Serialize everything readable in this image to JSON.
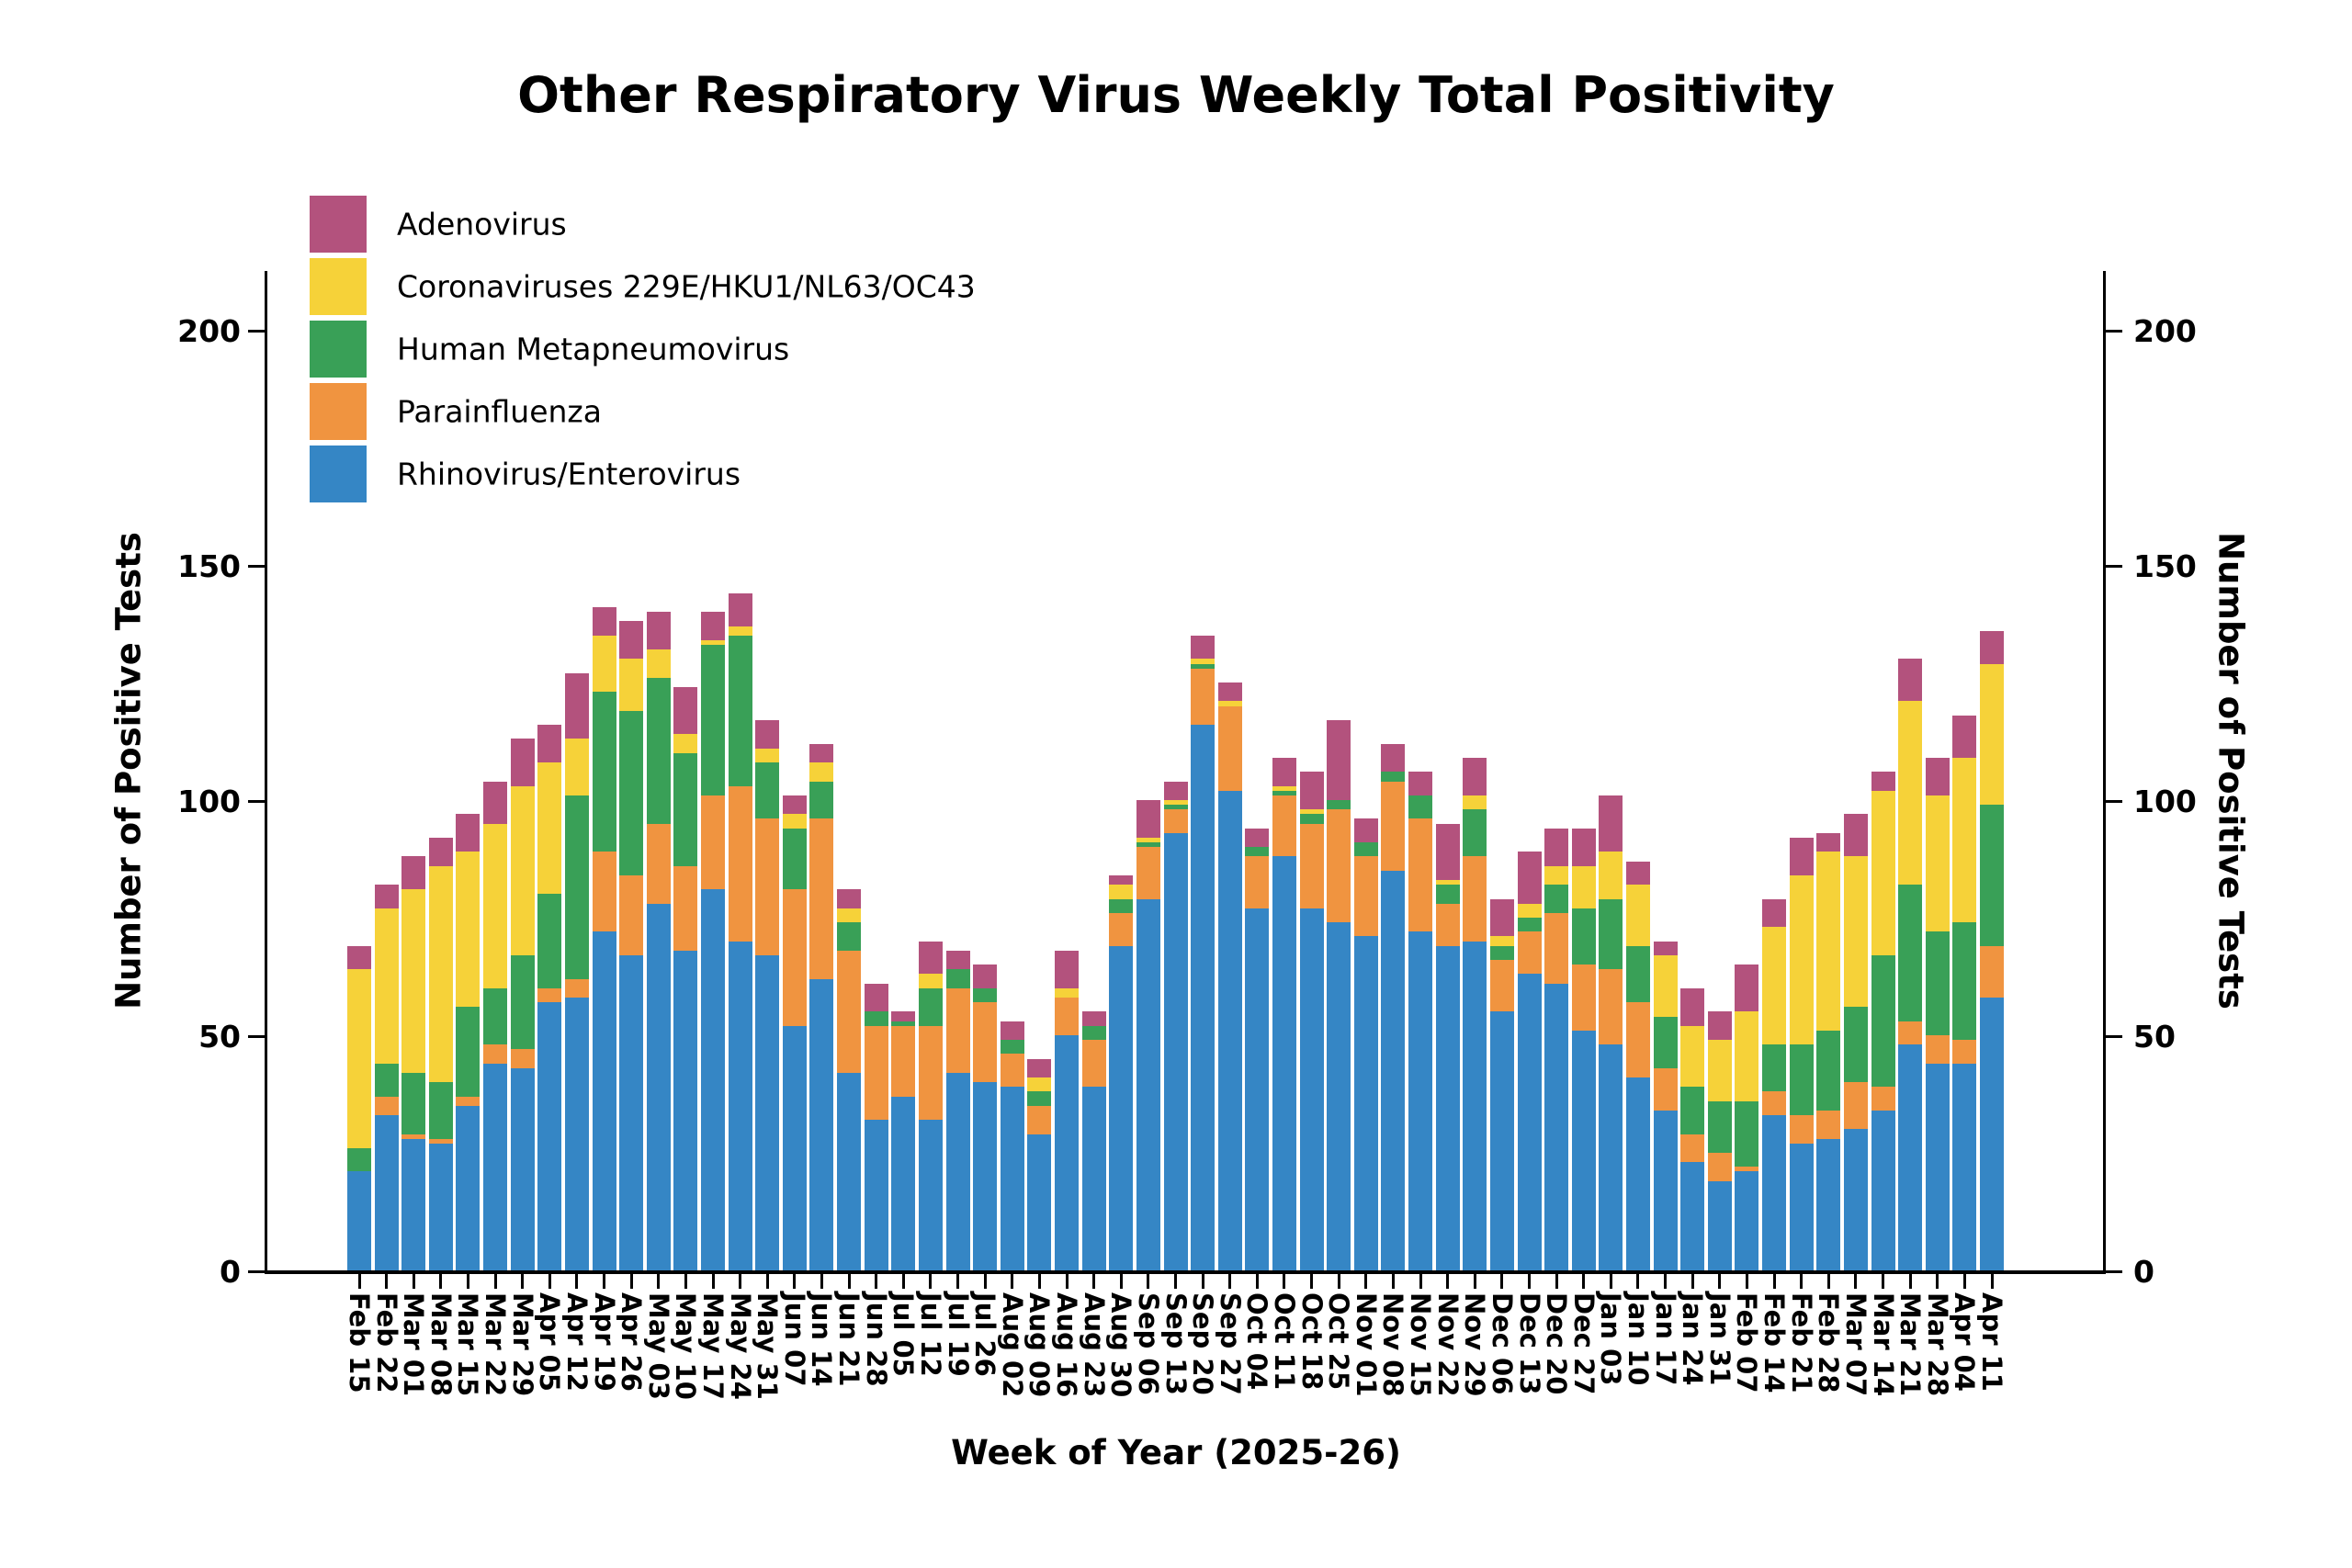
{
  "chart_data": {
    "type": "bar",
    "stacked": true,
    "title": "Other Respiratory Virus Weekly Total Positivity",
    "xlabel": "Week of Year (2025-26)",
    "ylabel_left": "Number of Positive Tests",
    "ylabel_right": "Number of Positive Tests",
    "yticks": [
      0,
      50,
      100,
      150,
      200
    ],
    "ylim": [
      0,
      212
    ],
    "grid": false,
    "legend_position": "top-left-inside",
    "legend_order": [
      "Adenovirus",
      "Coronaviruses 229E/HKU1/NL63/OC43",
      "Human Metapneumovirus",
      "Parainfluenza",
      "Rhinovirus/Enterovirus"
    ],
    "categories": [
      "Feb 15",
      "Feb 22",
      "Mar 01",
      "Mar 08",
      "Mar 15",
      "Mar 22",
      "Mar 29",
      "Apr 05",
      "Apr 12",
      "Apr 19",
      "Apr 26",
      "May 03",
      "May 10",
      "May 17",
      "May 24",
      "May 31",
      "Jun 07",
      "Jun 14",
      "Jun 21",
      "Jun 28",
      "Jul 05",
      "Jul 12",
      "Jul 19",
      "Jul 26",
      "Aug 02",
      "Aug 09",
      "Aug 16",
      "Aug 23",
      "Aug 30",
      "Sep 06",
      "Sep 13",
      "Sep 20",
      "Sep 27",
      "Oct 04",
      "Oct 11",
      "Oct 18",
      "Oct 25",
      "Nov 01",
      "Nov 08",
      "Nov 15",
      "Nov 22",
      "Nov 29",
      "Dec 06",
      "Dec 13",
      "Dec 20",
      "Dec 27",
      "Jan 03",
      "Jan 10",
      "Jan 17",
      "Jan 24",
      "Jan 31",
      "Feb 07",
      "Feb 14",
      "Feb 21",
      "Feb 28",
      "Mar 07",
      "Mar 14",
      "Mar 21",
      "Mar 28",
      "Apr 04",
      "Apr 11"
    ],
    "series": [
      {
        "name": "Rhinovirus/Enterovirus",
        "color": "#3586C5",
        "values": [
          21,
          33,
          28,
          27,
          35,
          44,
          43,
          57,
          58,
          72,
          67,
          78,
          68,
          81,
          70,
          67,
          52,
          62,
          42,
          32,
          37,
          32,
          42,
          40,
          39,
          29,
          50,
          39,
          69,
          79,
          93,
          116,
          102,
          77,
          88,
          77,
          74,
          71,
          85,
          72,
          69,
          70,
          55,
          63,
          61,
          51,
          48,
          41,
          34,
          23,
          19,
          21,
          33,
          27,
          28,
          30,
          34,
          48,
          44,
          44,
          58
        ]
      },
      {
        "name": "Parainfluenza",
        "color": "#F09440",
        "values": [
          0,
          4,
          1,
          1,
          2,
          4,
          4,
          3,
          4,
          17,
          17,
          17,
          18,
          20,
          33,
          29,
          29,
          34,
          26,
          20,
          15,
          20,
          18,
          17,
          7,
          6,
          8,
          10,
          7,
          11,
          5,
          12,
          18,
          11,
          13,
          18,
          24,
          17,
          19,
          24,
          9,
          18,
          11,
          9,
          15,
          14,
          16,
          16,
          9,
          6,
          6,
          1,
          5,
          6,
          6,
          10,
          5,
          5,
          6,
          5,
          11
        ]
      },
      {
        "name": "Human Metapneumovirus",
        "color": "#39A057",
        "values": [
          5,
          7,
          13,
          12,
          19,
          12,
          20,
          20,
          39,
          34,
          35,
          31,
          24,
          32,
          32,
          12,
          13,
          8,
          6,
          3,
          1,
          8,
          4,
          3,
          3,
          3,
          0,
          3,
          3,
          1,
          1,
          1,
          0,
          2,
          1,
          2,
          2,
          3,
          2,
          5,
          4,
          10,
          3,
          3,
          6,
          12,
          15,
          12,
          11,
          10,
          11,
          14,
          10,
          15,
          17,
          16,
          28,
          29,
          22,
          25,
          30
        ]
      },
      {
        "name": "Coronaviruses 229E/HKU1/NL63/OC43",
        "color": "#F6D239",
        "values": [
          38,
          33,
          39,
          46,
          33,
          35,
          36,
          28,
          12,
          12,
          11,
          6,
          4,
          1,
          2,
          3,
          3,
          4,
          3,
          0,
          0,
          3,
          0,
          0,
          0,
          3,
          2,
          0,
          3,
          1,
          1,
          1,
          1,
          0,
          1,
          1,
          0,
          0,
          0,
          0,
          1,
          3,
          2,
          3,
          4,
          9,
          10,
          13,
          13,
          13,
          13,
          19,
          25,
          36,
          38,
          32,
          35,
          39,
          29,
          35,
          30
        ]
      },
      {
        "name": "Adenovirus",
        "color": "#B3527D",
        "values": [
          5,
          5,
          7,
          6,
          8,
          9,
          10,
          8,
          14,
          6,
          8,
          8,
          10,
          6,
          7,
          6,
          4,
          4,
          4,
          6,
          2,
          7,
          4,
          5,
          4,
          4,
          8,
          3,
          2,
          8,
          4,
          5,
          4,
          4,
          6,
          8,
          17,
          5,
          6,
          5,
          12,
          8,
          8,
          11,
          8,
          8,
          12,
          5,
          3,
          8,
          6,
          10,
          6,
          8,
          4,
          9,
          4,
          9,
          8,
          9,
          7
        ]
      }
    ]
  }
}
